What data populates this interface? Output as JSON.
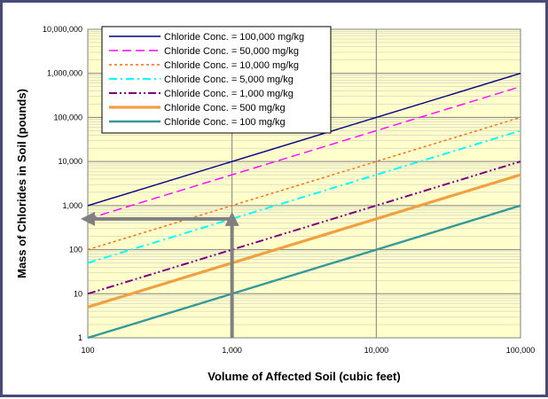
{
  "chart_data": {
    "type": "line",
    "xscale": "log",
    "yscale": "log",
    "xlim": [
      100,
      100000
    ],
    "ylim": [
      1,
      10000000
    ],
    "xlabel": "Volume of Affected Soil (cubic feet)",
    "ylabel": "Mass of Chlorides in Soil (pounds)",
    "x_ticks": [
      "100",
      "1,000",
      "10,000",
      "100,000"
    ],
    "y_ticks": [
      "1",
      "10",
      "100",
      "1,000",
      "10,000",
      "100,000",
      "1,000,000",
      "10,000,000"
    ],
    "grid": true,
    "legend_position": "top-left",
    "plot_background": "#ffffcc",
    "series": [
      {
        "name": "Chloride Conc. = 100,000 mg/kg",
        "color": "#000080",
        "dash": "solid",
        "points": [
          [
            100,
            1000
          ],
          [
            100000,
            1000000
          ]
        ]
      },
      {
        "name": "Chloride Conc. = 50,000 mg/kg",
        "color": "#ff00ff",
        "dash": "dashed",
        "points": [
          [
            100,
            500
          ],
          [
            100000,
            500000
          ]
        ]
      },
      {
        "name": "Chloride Conc. = 10,000 mg/kg",
        "color": "#ff6600",
        "dash": "dotted",
        "points": [
          [
            100,
            100
          ],
          [
            100000,
            100000
          ]
        ]
      },
      {
        "name": "Chloride Conc. = 5,000 mg/kg",
        "color": "#00ffff",
        "dash": "dash-dot",
        "points": [
          [
            100,
            50
          ],
          [
            100000,
            50000
          ]
        ]
      },
      {
        "name": "Chloride Conc. = 1,000 mg/kg",
        "color": "#800080",
        "dash": "dash-dot-dot",
        "points": [
          [
            100,
            10
          ],
          [
            100000,
            10000
          ]
        ]
      },
      {
        "name": "Chloride Conc. = 500 mg/kg",
        "color": "#f0a040",
        "dash": "thick",
        "points": [
          [
            100,
            5
          ],
          [
            100000,
            5000
          ]
        ]
      },
      {
        "name": "Chloride Conc. = 100 mg/kg",
        "color": "#339999",
        "dash": "solid-thick",
        "points": [
          [
            100,
            1
          ],
          [
            100000,
            1000
          ]
        ]
      }
    ],
    "annotation_arrows": [
      {
        "color": "#808080",
        "from": [
          1000,
          1
        ],
        "to": [
          1000,
          500
        ]
      },
      {
        "color": "#808080",
        "from": [
          1000,
          500
        ],
        "to": [
          100,
          500
        ]
      }
    ]
  }
}
